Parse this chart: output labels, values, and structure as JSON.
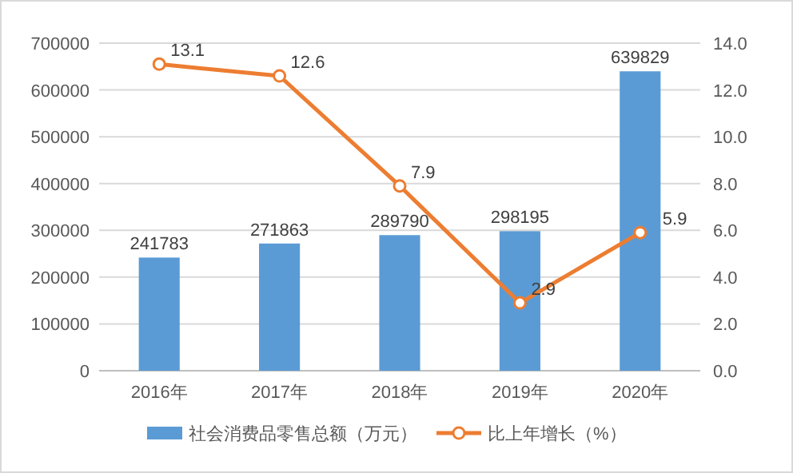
{
  "chart_data": {
    "type": "bar",
    "categories": [
      "2016年",
      "2017年",
      "2018年",
      "2019年",
      "2020年"
    ],
    "series": [
      {
        "name": "社会消费品零售总额（万元）",
        "color": "#5b9bd5",
        "values": [
          241783,
          271863,
          289790,
          298195,
          639829
        ]
      },
      {
        "name": "比上年增长（%）",
        "type": "line",
        "axis": "y2",
        "color": "#ed7d31",
        "marker": "circle",
        "values": [
          13.1,
          12.6,
          7.9,
          2.9,
          5.9
        ]
      }
    ],
    "ylim": [
      0,
      700000
    ],
    "yticks": [
      0,
      100000,
      200000,
      300000,
      400000,
      500000,
      600000,
      700000
    ],
    "y2lim": [
      0,
      14
    ],
    "y2ticks": [
      {
        "value": 0,
        "label": "0.0"
      },
      {
        "value": 2,
        "label": "2.0"
      },
      {
        "value": 4,
        "label": "4.0"
      },
      {
        "value": 6,
        "label": "6.0"
      },
      {
        "value": 8,
        "label": "8.0"
      },
      {
        "value": 10,
        "label": "10.0"
      },
      {
        "value": 12,
        "label": "12.0"
      },
      {
        "value": 14,
        "label": "14.0"
      }
    ],
    "grid": "y",
    "legend": "bottom",
    "data_labels": true
  }
}
